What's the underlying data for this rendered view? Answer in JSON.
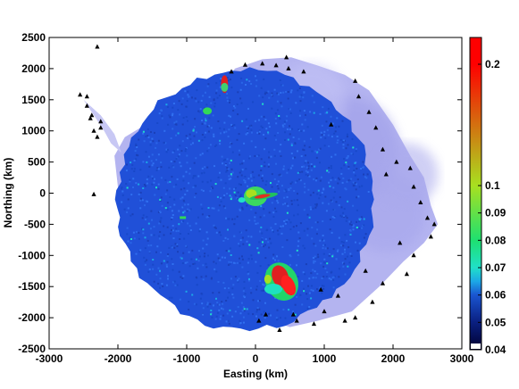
{
  "chart_data": {
    "type": "heatmap",
    "title": "",
    "xlabel": "Easting (km)",
    "ylabel": "Northing (km)",
    "xlim": [
      -3000,
      3000
    ],
    "ylim": [
      -2500,
      2500
    ],
    "x_ticks": [
      "-3000",
      "-2000",
      "-1000",
      "0",
      "1000",
      "2000",
      "3000"
    ],
    "y_ticks": [
      "2500",
      "2000",
      "1500",
      "1000",
      "500",
      "0",
      "-500",
      "-1000",
      "-1500",
      "-2000",
      "-2500"
    ],
    "colorbar": {
      "ticks": [
        "0.2",
        "0.1",
        "0.09",
        "0.08",
        "0.07",
        "0.06",
        "0.05",
        "0.04"
      ],
      "stops": [
        {
          "value": 0.04,
          "color": "#000030"
        },
        {
          "value": 0.05,
          "color": "#0a1f80"
        },
        {
          "value": 0.06,
          "color": "#1a55d0"
        },
        {
          "value": 0.065,
          "color": "#1ca8e6"
        },
        {
          "value": 0.07,
          "color": "#20e0c8"
        },
        {
          "value": 0.08,
          "color": "#1ee070"
        },
        {
          "value": 0.1,
          "color": "#a8e020"
        },
        {
          "value": 0.2,
          "color": "#ff0000"
        }
      ]
    },
    "background_color": "#b4b4f0",
    "field_color": "#2050d8",
    "features": [
      {
        "name": "central_anomaly",
        "x": 0,
        "y": -50,
        "value": 0.09
      },
      {
        "name": "south_anomaly",
        "x": 380,
        "y": -1420,
        "value": 0.2
      },
      {
        "name": "north_anomaly",
        "x": -450,
        "y": 1750,
        "value": 0.2
      }
    ]
  }
}
